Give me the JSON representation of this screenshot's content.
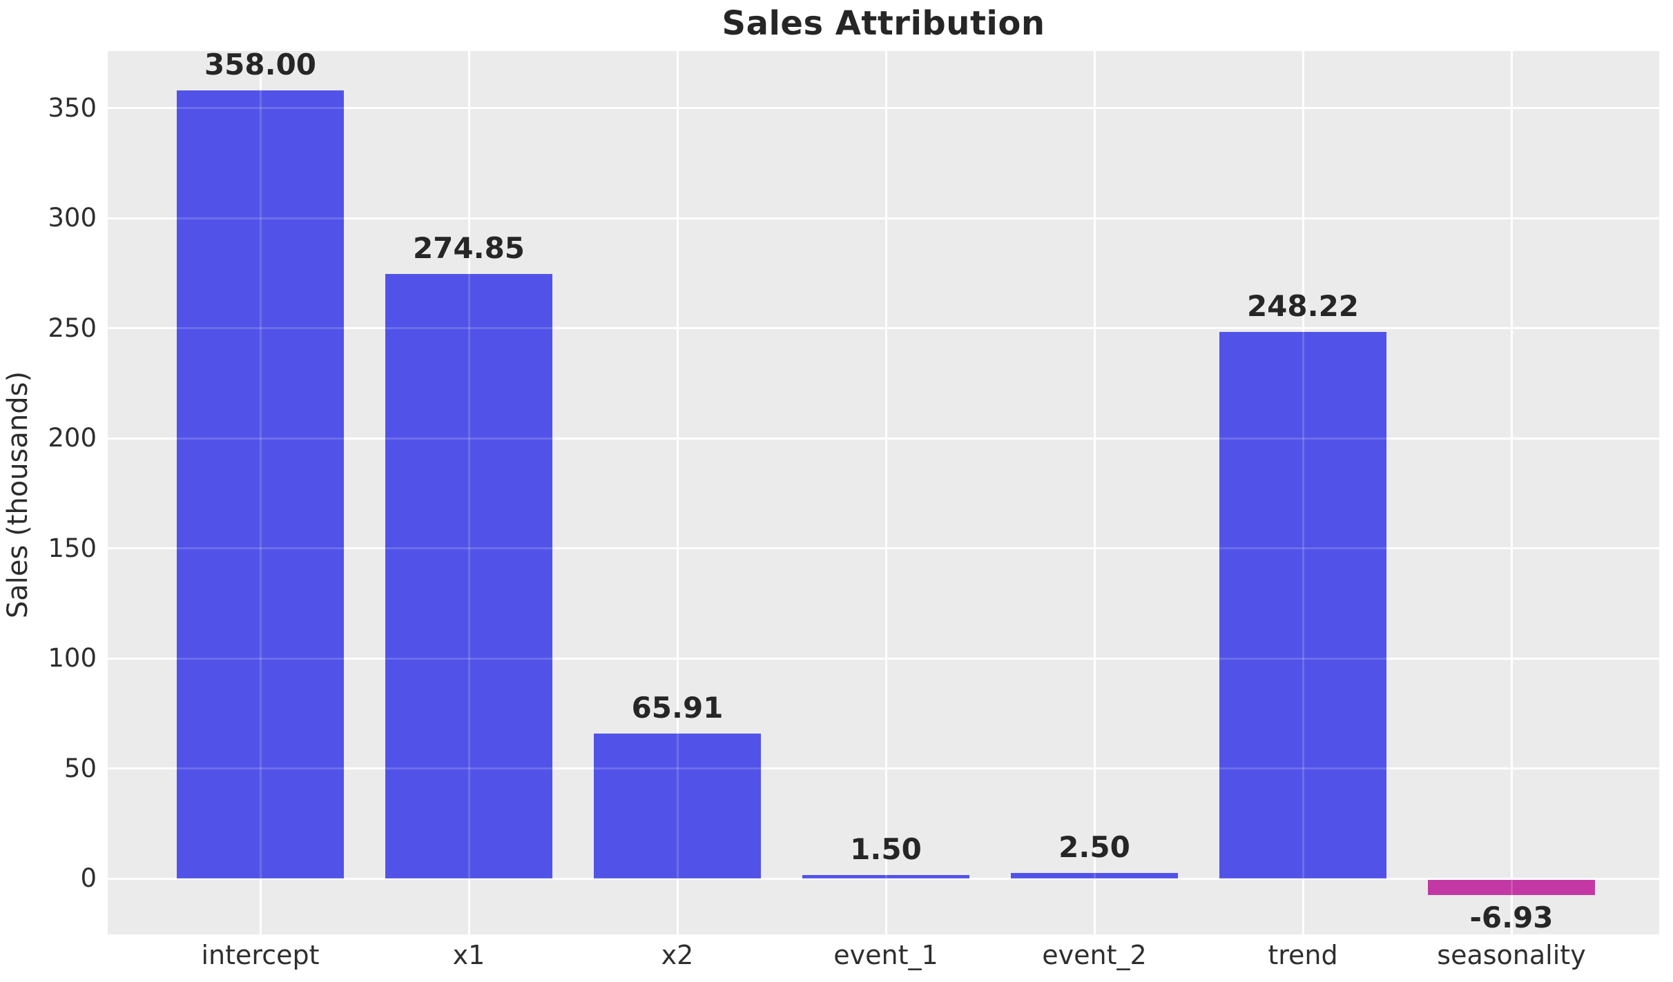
{
  "chart_data": {
    "type": "bar",
    "title": "Sales Attribution",
    "xlabel": "",
    "ylabel": "Sales (thousands)",
    "categories": [
      "intercept",
      "x1",
      "x2",
      "event_1",
      "event_2",
      "trend",
      "seasonality"
    ],
    "values": [
      358.0,
      274.85,
      65.91,
      1.5,
      2.5,
      248.22,
      -6.93
    ],
    "value_labels": [
      "358.00",
      "274.85",
      "65.91",
      "1.50",
      "2.50",
      "248.22",
      "-6.93"
    ],
    "yticks": [
      0,
      50,
      100,
      150,
      200,
      250,
      300,
      350
    ],
    "ytick_labels": [
      "0",
      "50",
      "100",
      "150",
      "200",
      "250",
      "300",
      "350"
    ],
    "ylim": [
      -25,
      376
    ],
    "grid": "on",
    "legend": "none",
    "colors": {
      "positive_bar": "#5153E8",
      "negative_bar": "#C338A4",
      "plot_background": "#EBEBEB",
      "gridline": "#FFFFFF",
      "text": "#262626"
    }
  }
}
